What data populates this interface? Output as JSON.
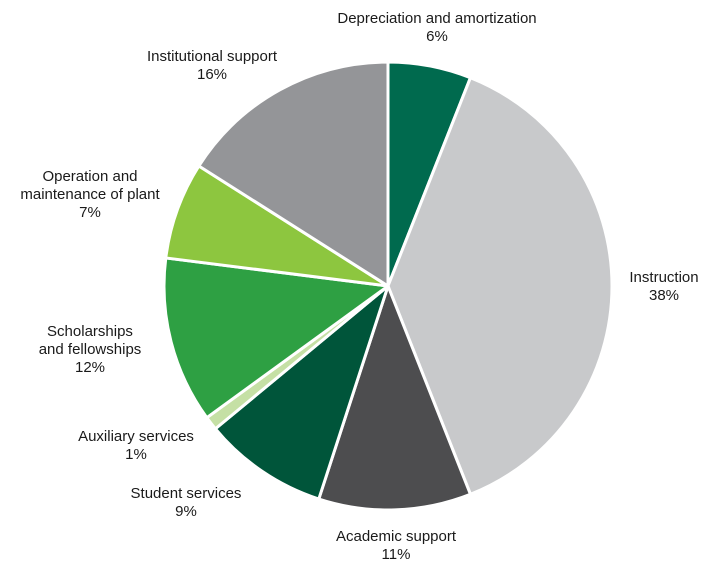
{
  "chart_data": {
    "type": "pie",
    "slices": [
      {
        "label": "Depreciation and amortization",
        "value": 6,
        "value_label": "6%",
        "color": "#006a4e"
      },
      {
        "label": "Instruction",
        "value": 38,
        "value_label": "38%",
        "color": "#c8c9cb"
      },
      {
        "label": "Academic support",
        "value": 11,
        "value_label": "11%",
        "color": "#4d4d4f"
      },
      {
        "label": "Student services",
        "value": 9,
        "value_label": "9%",
        "color": "#00553a"
      },
      {
        "label": "Auxiliary services",
        "value": 1,
        "value_label": "1%",
        "color": "#c5e0a5"
      },
      {
        "label": "Scholarships\nand fellowships",
        "value": 12,
        "value_label": "12%",
        "color": "#2ea043"
      },
      {
        "label": "Operation and\nmaintenance of plant",
        "value": 7,
        "value_label": "7%",
        "color": "#8dc63f"
      },
      {
        "label": "Institutional support",
        "value": 16,
        "value_label": "16%",
        "color": "#949598"
      }
    ],
    "start": "12 o'clock",
    "direction": "clockwise",
    "legend": "none (labels outside slices)"
  }
}
